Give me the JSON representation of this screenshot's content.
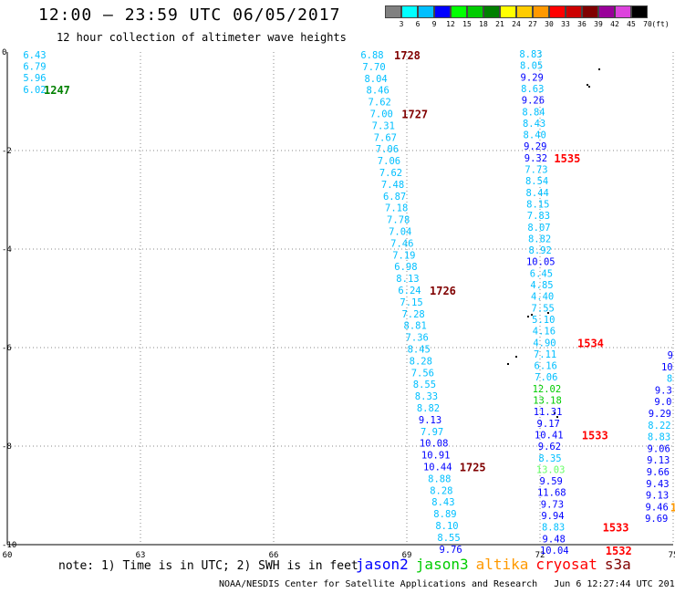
{
  "header": {
    "title": "12:00 – 23:59 UTC 06/05/2017",
    "subtitle": "12 hour collection of altimeter wave heights"
  },
  "legend": {
    "unit": "(ft)",
    "items": [
      {
        "label": "3",
        "color": "#808080"
      },
      {
        "label": "6",
        "color": "#00ffff"
      },
      {
        "label": "9",
        "color": "#00bfff"
      },
      {
        "label": "12",
        "color": "#0000ff"
      },
      {
        "label": "15",
        "color": "#00ff00"
      },
      {
        "label": "18",
        "color": "#00cc00"
      },
      {
        "label": "21",
        "color": "#008000"
      },
      {
        "label": "24",
        "color": "#ffff00"
      },
      {
        "label": "27",
        "color": "#ffcc00"
      },
      {
        "label": "30",
        "color": "#ff9900"
      },
      {
        "label": "33",
        "color": "#ff0000"
      },
      {
        "label": "36",
        "color": "#cc0000"
      },
      {
        "label": "39",
        "color": "#800000"
      },
      {
        "label": "42",
        "color": "#990099"
      },
      {
        "label": "45",
        "color": "#dd44dd"
      },
      {
        "label": "70",
        "color": "#000000"
      }
    ]
  },
  "map": {
    "lon_labels": [
      "60",
      "63",
      "66",
      "69",
      "72",
      "75"
    ],
    "lat_labels": [
      "0",
      "-2",
      "-4",
      "-6",
      "-8",
      "-10"
    ],
    "gridlines": "dotted"
  },
  "tracks": [
    {
      "values": [
        {
          "t": "6.43",
          "c": "#00bfff"
        },
        {
          "t": "6.79",
          "c": "#00bfff"
        },
        {
          "t": "5.96",
          "c": "#00bfff"
        },
        {
          "t": "6.02",
          "c": "#00bfff"
        }
      ],
      "labels": [
        {
          "t": "1247",
          "c": "#008000",
          "row": 3
        }
      ]
    },
    {
      "values": [
        {
          "t": "6.88",
          "c": "#00bfff"
        },
        {
          "t": "7.70",
          "c": "#00bfff"
        },
        {
          "t": "8.04",
          "c": "#00bfff"
        },
        {
          "t": "8.46",
          "c": "#00bfff"
        },
        {
          "t": "7.62",
          "c": "#00bfff"
        },
        {
          "t": "7.00",
          "c": "#00bfff"
        },
        {
          "t": "7.31",
          "c": "#00bfff"
        },
        {
          "t": "7.67",
          "c": "#00bfff"
        },
        {
          "t": "7.06",
          "c": "#00bfff"
        },
        {
          "t": "7.06",
          "c": "#00bfff"
        },
        {
          "t": "7.62",
          "c": "#00bfff"
        },
        {
          "t": "7.48",
          "c": "#00bfff"
        },
        {
          "t": "6.87",
          "c": "#00bfff"
        },
        {
          "t": "7.18",
          "c": "#00bfff"
        },
        {
          "t": "7.78",
          "c": "#00bfff"
        },
        {
          "t": "7.04",
          "c": "#00bfff"
        },
        {
          "t": "7.46",
          "c": "#00bfff"
        },
        {
          "t": "7.19",
          "c": "#00bfff"
        },
        {
          "t": "6.98",
          "c": "#00bfff"
        },
        {
          "t": "8.13",
          "c": "#00bfff"
        },
        {
          "t": "6.24",
          "c": "#00bfff"
        },
        {
          "t": "7.15",
          "c": "#00bfff"
        },
        {
          "t": "7.28",
          "c": "#00bfff"
        },
        {
          "t": "8.81",
          "c": "#00bfff"
        },
        {
          "t": "7.36",
          "c": "#00bfff"
        },
        {
          "t": "8.45",
          "c": "#00bfff"
        },
        {
          "t": "8.28",
          "c": "#00bfff"
        },
        {
          "t": "7.56",
          "c": "#00bfff"
        },
        {
          "t": "8.55",
          "c": "#00bfff"
        },
        {
          "t": "8.33",
          "c": "#00bfff"
        },
        {
          "t": "8.82",
          "c": "#00bfff"
        },
        {
          "t": "9.13",
          "c": "#0000ff"
        },
        {
          "t": "7.97",
          "c": "#00bfff"
        },
        {
          "t": "10.08",
          "c": "#0000ff"
        },
        {
          "t": "10.91",
          "c": "#0000ff"
        },
        {
          "t": "10.44",
          "c": "#0000ff"
        },
        {
          "t": "8.88",
          "c": "#00bfff"
        },
        {
          "t": "8.28",
          "c": "#00bfff"
        },
        {
          "t": "8.43",
          "c": "#00bfff"
        },
        {
          "t": "8.89",
          "c": "#00bfff"
        },
        {
          "t": "8.10",
          "c": "#00bfff"
        },
        {
          "t": "8.55",
          "c": "#00bfff"
        },
        {
          "t": "9.76",
          "c": "#0000ff"
        }
      ],
      "labels": [
        {
          "t": "1728",
          "c": "#800000",
          "row": 0
        },
        {
          "t": "1727",
          "c": "#800000",
          "row": 5
        },
        {
          "t": "1726",
          "c": "#800000",
          "row": 20
        },
        {
          "t": "1725",
          "c": "#800000",
          "row": 35
        }
      ]
    },
    {
      "values": [
        {
          "t": "8.83",
          "c": "#00bfff"
        },
        {
          "t": "8.05",
          "c": "#00bfff"
        },
        {
          "t": "9.29",
          "c": "#0000ff"
        },
        {
          "t": "8.63",
          "c": "#00bfff"
        },
        {
          "t": "9.26",
          "c": "#0000ff"
        },
        {
          "t": "8.84",
          "c": "#00bfff"
        },
        {
          "t": "8.43",
          "c": "#00bfff"
        },
        {
          "t": "8.40",
          "c": "#00bfff"
        },
        {
          "t": "9.29",
          "c": "#0000ff"
        },
        {
          "t": "9.32",
          "c": "#0000ff"
        },
        {
          "t": "7.73",
          "c": "#00bfff"
        },
        {
          "t": "8.54",
          "c": "#00bfff"
        },
        {
          "t": "8.44",
          "c": "#00bfff"
        },
        {
          "t": "8.15",
          "c": "#00bfff"
        },
        {
          "t": "7.83",
          "c": "#00bfff"
        },
        {
          "t": "8.07",
          "c": "#00bfff"
        },
        {
          "t": "8.82",
          "c": "#00bfff"
        },
        {
          "t": "8.92",
          "c": "#00bfff"
        },
        {
          "t": "10.05",
          "c": "#0000ff"
        },
        {
          "t": "6.45",
          "c": "#00bfff"
        },
        {
          "t": "4.85",
          "c": "#00bfff"
        },
        {
          "t": "4.40",
          "c": "#00bfff"
        },
        {
          "t": "7.55",
          "c": "#00bfff"
        },
        {
          "t": "5.10",
          "c": "#00bfff"
        },
        {
          "t": "4.16",
          "c": "#00bfff"
        },
        {
          "t": "4.90",
          "c": "#00bfff"
        },
        {
          "t": "7.11",
          "c": "#00bfff"
        },
        {
          "t": "6.16",
          "c": "#00bfff"
        },
        {
          "t": "7.06",
          "c": "#00bfff"
        },
        {
          "t": "12.02",
          "c": "#00cc00"
        },
        {
          "t": "13.18",
          "c": "#00cc00"
        },
        {
          "t": "11.31",
          "c": "#0000ff"
        },
        {
          "t": "9.17",
          "c": "#0000ff"
        },
        {
          "t": "10.41",
          "c": "#0000ff"
        },
        {
          "t": "9.62",
          "c": "#0000ff"
        },
        {
          "t": "8.35",
          "c": "#00bfff"
        },
        {
          "t": "13.03",
          "c": "#66ff66"
        },
        {
          "t": "9.59",
          "c": "#0000ff"
        },
        {
          "t": "11.68",
          "c": "#0000ff"
        },
        {
          "t": "9.73",
          "c": "#0000ff"
        },
        {
          "t": "9.94",
          "c": "#0000ff"
        },
        {
          "t": "8.83",
          "c": "#00bfff"
        },
        {
          "t": "9.48",
          "c": "#0000ff"
        },
        {
          "t": "10.04",
          "c": "#0000ff"
        }
      ],
      "labels": [
        {
          "t": "1535",
          "c": "#ff0000",
          "row": 9
        },
        {
          "t": "1534",
          "c": "#ff0000",
          "row": 25
        },
        {
          "t": "1533",
          "c": "#ff0000",
          "row": 33
        },
        {
          "t": "1533",
          "c": "#ff0000",
          "row": 41
        },
        {
          "t": "1532",
          "c": "#ff0000",
          "row": 43
        }
      ]
    },
    {
      "values": [
        {
          "t": "9",
          "c": "#0000ff"
        },
        {
          "t": "10",
          "c": "#0000ff"
        },
        {
          "t": "8",
          "c": "#00bfff"
        },
        {
          "t": "9.3",
          "c": "#0000ff"
        },
        {
          "t": "9.0",
          "c": "#0000ff"
        },
        {
          "t": "9.29",
          "c": "#0000ff"
        },
        {
          "t": "8.22",
          "c": "#00bfff"
        },
        {
          "t": "8.83",
          "c": "#00bfff"
        },
        {
          "t": "9.06",
          "c": "#0000ff"
        },
        {
          "t": "9.13",
          "c": "#0000ff"
        },
        {
          "t": "9.66",
          "c": "#0000ff"
        },
        {
          "t": "9.43",
          "c": "#0000ff"
        },
        {
          "t": "9.13",
          "c": "#0000ff"
        },
        {
          "t": "9.46",
          "c": "#0000ff"
        },
        {
          "t": "9.69",
          "c": "#0000ff"
        }
      ],
      "labels": [
        {
          "t": "1",
          "c": "#ff9900",
          "row": 13
        }
      ]
    }
  ],
  "footer": {
    "note": "note: 1) Time is in UTC; 2) SWH is in feet",
    "satellites": [
      {
        "name": "jason2",
        "color": "#0000ff"
      },
      {
        "name": "jason3",
        "color": "#00cc00"
      },
      {
        "name": "altika",
        "color": "#ff9900"
      },
      {
        "name": "cryosat",
        "color": "#ff0000"
      },
      {
        "name": "s3a",
        "color": "#800000"
      }
    ],
    "credit": "NOAA/NESDIS Center for Satellite Applications and Research",
    "timestamp": "Jun  6 12:27:44 UTC 2017"
  }
}
